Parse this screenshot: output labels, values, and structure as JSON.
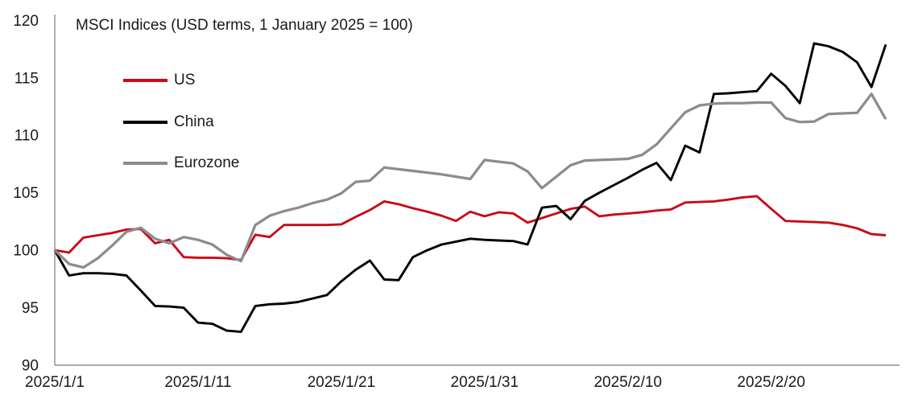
{
  "chart_data": {
    "type": "line",
    "title": "MSCI Indices (USD terms, 1 January 2025 = 100)",
    "grid": false,
    "legend_position": "top-left-inside",
    "ylim": [
      90,
      120
    ],
    "y_ticks": [
      90,
      95,
      100,
      105,
      110,
      115,
      120
    ],
    "x_tick_labels": [
      "2025/1/1",
      "2025/1/11",
      "2025/1/21",
      "2025/1/31",
      "2025/2/10",
      "2025/2/20"
    ],
    "x_tick_indices": [
      0,
      10,
      20,
      30,
      40,
      50
    ],
    "axis_color": "#8f8f8f",
    "text_color": "#1a1a1a",
    "x": [
      "2025/1/1",
      "2025/1/2",
      "2025/1/3",
      "2025/1/4",
      "2025/1/5",
      "2025/1/6",
      "2025/1/7",
      "2025/1/8",
      "2025/1/9",
      "2025/1/10",
      "2025/1/11",
      "2025/1/12",
      "2025/1/13",
      "2025/1/14",
      "2025/1/15",
      "2025/1/16",
      "2025/1/17",
      "2025/1/18",
      "2025/1/19",
      "2025/1/20",
      "2025/1/21",
      "2025/1/22",
      "2025/1/23",
      "2025/1/24",
      "2025/1/25",
      "2025/1/26",
      "2025/1/27",
      "2025/1/28",
      "2025/1/29",
      "2025/1/30",
      "2025/1/31",
      "2025/2/1",
      "2025/2/2",
      "2025/2/3",
      "2025/2/4",
      "2025/2/5",
      "2025/2/6",
      "2025/2/7",
      "2025/2/8",
      "2025/2/9",
      "2025/2/10",
      "2025/2/11",
      "2025/2/12",
      "2025/2/13",
      "2025/2/14",
      "2025/2/15",
      "2025/2/16",
      "2025/2/17",
      "2025/2/18",
      "2025/2/19",
      "2025/2/20",
      "2025/2/21",
      "2025/2/22",
      "2025/2/23",
      "2025/2/24",
      "2025/2/25",
      "2025/2/26",
      "2025/2/27",
      "2025/2/28"
    ],
    "series": [
      {
        "name": "US",
        "color": "#c90a18",
        "stroke_width": 2.9,
        "values": [
          100.0,
          99.8,
          101.1,
          101.3,
          101.5,
          101.8,
          101.85,
          100.6,
          100.9,
          99.4,
          99.35,
          99.35,
          99.3,
          99.15,
          101.35,
          101.15,
          102.2,
          102.2,
          102.2,
          102.2,
          102.25,
          102.9,
          103.5,
          104.25,
          104.0,
          103.65,
          103.35,
          103.0,
          102.55,
          103.35,
          102.95,
          103.3,
          103.2,
          102.4,
          102.8,
          103.2,
          103.6,
          103.8,
          102.95,
          103.1,
          103.2,
          103.3,
          103.45,
          103.55,
          104.15,
          104.2,
          104.25,
          104.4,
          104.6,
          104.7,
          103.6,
          102.55,
          102.5,
          102.45,
          102.4,
          102.2,
          101.9,
          101.4,
          101.3
        ]
      },
      {
        "name": "China",
        "color": "#000000",
        "stroke_width": 2.9,
        "values": [
          100.0,
          97.8,
          98.0,
          98.0,
          97.95,
          97.8,
          96.5,
          95.15,
          95.1,
          95.0,
          93.7,
          93.6,
          93.0,
          92.9,
          95.15,
          95.3,
          95.35,
          95.5,
          95.8,
          96.1,
          97.3,
          98.3,
          99.1,
          97.45,
          97.4,
          99.4,
          100.0,
          100.5,
          100.75,
          101.0,
          100.9,
          100.85,
          100.8,
          100.5,
          103.7,
          103.85,
          102.7,
          104.3,
          105.0,
          105.65,
          106.3,
          107.0,
          107.6,
          106.1,
          109.1,
          108.5,
          113.6,
          113.65,
          113.75,
          113.85,
          115.35,
          114.3,
          112.8,
          118.0,
          117.75,
          117.25,
          116.35,
          114.2,
          117.9
        ]
      },
      {
        "name": "Eurozone",
        "color": "#8c8c8c",
        "stroke_width": 3.25,
        "values": [
          100.0,
          98.8,
          98.5,
          99.3,
          100.4,
          101.6,
          101.95,
          101.0,
          100.6,
          101.15,
          100.9,
          100.5,
          99.6,
          99.05,
          102.2,
          103.0,
          103.4,
          103.7,
          104.1,
          104.4,
          104.95,
          105.95,
          106.05,
          107.2,
          107.05,
          106.9,
          106.75,
          106.6,
          106.4,
          106.2,
          107.85,
          107.7,
          107.55,
          106.85,
          105.4,
          106.4,
          107.4,
          107.8,
          107.85,
          107.9,
          107.95,
          108.3,
          109.2,
          110.6,
          112.0,
          112.6,
          112.75,
          112.8,
          112.8,
          112.85,
          112.85,
          111.5,
          111.15,
          111.2,
          111.85,
          111.9,
          111.95,
          113.6,
          111.4
        ]
      }
    ]
  }
}
